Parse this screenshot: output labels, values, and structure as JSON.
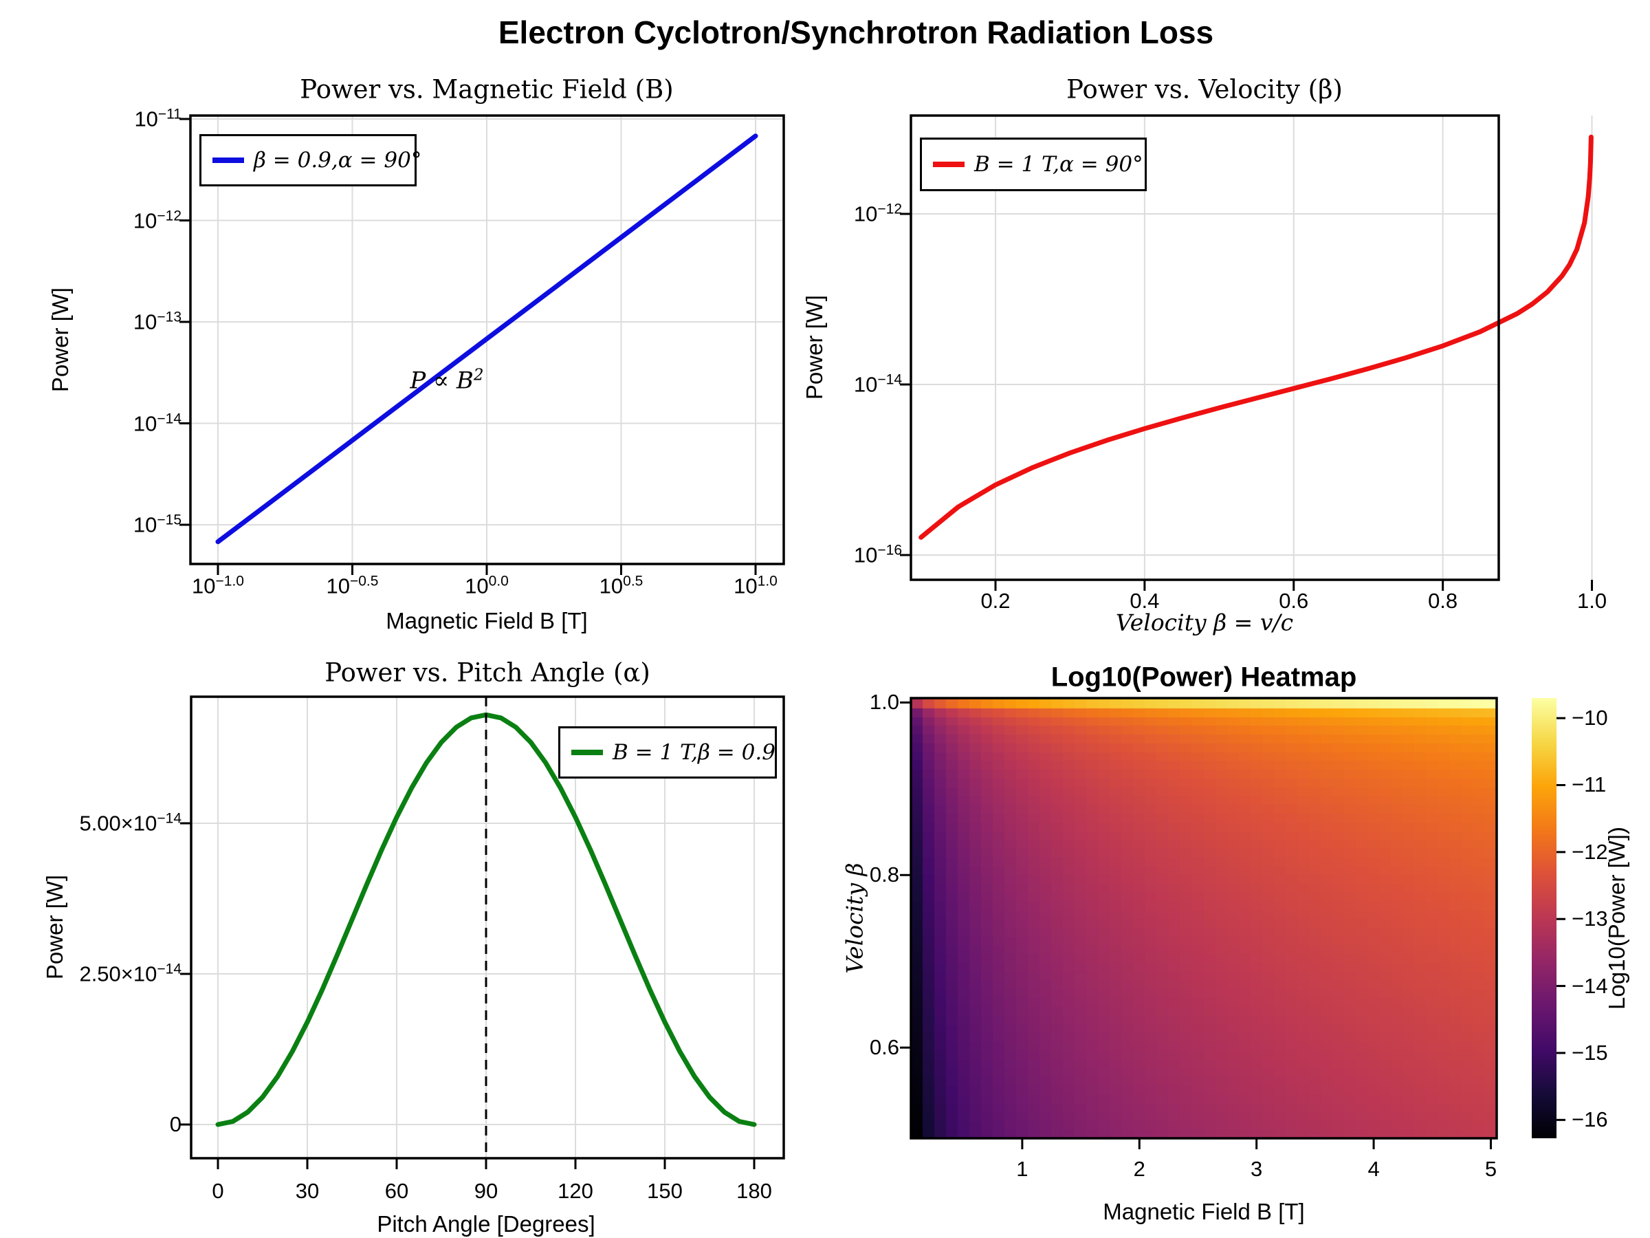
{
  "figure": {
    "title": "Electron Cyclotron/Synchrotron Radiation Loss"
  },
  "colors": {
    "series_blue": "#0d0de0",
    "series_red": "#ee1111",
    "series_green": "#0a8012",
    "grid": "#dcdcdc",
    "frame": "#000000",
    "dashed_line": "#000000",
    "background": "#ffffff"
  },
  "chart_data": [
    {
      "id": "power_vs_B",
      "type": "line",
      "title": "Power vs. Magnetic Field (B)",
      "xlabel": "Magnetic Field B [T]",
      "ylabel": "Power [W]",
      "xscale": "log10",
      "yscale": "log10",
      "xlim_log10": [
        -1.1,
        1.1
      ],
      "ylim_log10": [
        -15.4,
        -10.95
      ],
      "grid": true,
      "legend": {
        "label": "β = 0.9,α = 90°",
        "position": "top-left",
        "color": "series_blue"
      },
      "annotation": {
        "text": "P ∝ B^2",
        "B": 0.7,
        "P": 2.7e-14
      },
      "xticks": [
        {
          "v": 0.1,
          "label": "10^−1.0"
        },
        {
          "v": 0.3162,
          "label": "10^−0.5"
        },
        {
          "v": 1.0,
          "label": "10^0.0"
        },
        {
          "v": 3.1623,
          "label": "10^0.5"
        },
        {
          "v": 10.0,
          "label": "10^1.0"
        }
      ],
      "yticks": [
        {
          "v": 1e-11,
          "label": "10^−11"
        },
        {
          "v": 1e-12,
          "label": "10^−12"
        },
        {
          "v": 1e-13,
          "label": "10^−13"
        },
        {
          "v": 1e-14,
          "label": "10^−14"
        },
        {
          "v": 1e-15,
          "label": "10^−15"
        }
      ],
      "points": {
        "B": [
          0.1,
          0.17783,
          0.31623,
          0.56234,
          1.0,
          1.77828,
          3.16228,
          5.62341,
          10.0
        ],
        "P": [
          6.8e-16,
          2.1504e-15,
          6.8e-15,
          2.1504e-14,
          6.8e-14,
          2.1504e-13,
          6.8e-13,
          2.1504e-12,
          6.8e-12
        ]
      }
    },
    {
      "id": "power_vs_beta",
      "type": "line",
      "title": "Power vs. Velocity (β)",
      "xlabel": "Velocity β = v/c",
      "ylabel": "Power [W]",
      "xscale": "linear",
      "yscale": "log10",
      "xlim": [
        0.087,
        1.034
      ],
      "ylim_log10": [
        -16.29,
        -10.86
      ],
      "grid": true,
      "legend": {
        "label": "B = 1 T,α = 90°",
        "position": "top-left",
        "color": "series_red"
      },
      "xticks": [
        {
          "v": 0.2,
          "label": "0.2"
        },
        {
          "v": 0.4,
          "label": "0.4"
        },
        {
          "v": 0.6,
          "label": "0.6"
        },
        {
          "v": 0.8,
          "label": "0.8"
        },
        {
          "v": 1.0,
          "label": "1.0"
        }
      ],
      "yticks": [
        {
          "v": 1e-12,
          "label": "10^−12"
        },
        {
          "v": 1e-14,
          "label": "10^−14"
        },
        {
          "v": 1e-16,
          "label": "10^−16"
        }
      ],
      "points": {
        "beta": [
          0.1,
          0.15,
          0.2,
          0.25,
          0.3,
          0.35,
          0.4,
          0.45,
          0.5,
          0.55,
          0.6,
          0.65,
          0.7,
          0.75,
          0.8,
          0.85,
          0.9,
          0.92,
          0.94,
          0.96,
          0.97,
          0.98,
          0.99,
          0.995,
          0.997,
          0.998,
          0.999
        ],
        "P": [
          1.611e-16,
          3.671e-16,
          6.645e-16,
          1.063e-15,
          1.577e-15,
          2.227e-15,
          3.038e-15,
          4.05e-15,
          5.316e-15,
          6.917e-15,
          8.971e-15,
          1.167e-14,
          1.532e-14,
          2.051e-14,
          2.835e-14,
          4.152e-14,
          6.799e-14,
          8.788e-14,
          1.211e-13,
          1.875e-13,
          2.539e-13,
          3.868e-13,
          7.855e-13,
          1.583e-12,
          2.646e-12,
          3.976e-12,
          7.962e-12
        ]
      }
    },
    {
      "id": "power_vs_alpha",
      "type": "line",
      "title": "Power vs. Pitch Angle (α)",
      "xlabel": "Pitch Angle [Degrees]",
      "ylabel": "Power [W]",
      "xscale": "linear",
      "yscale": "linear",
      "xlim": [
        -9,
        190
      ],
      "ylim": [
        -5.6e-15,
        7.1e-14
      ],
      "grid": true,
      "legend": {
        "label": "B = 1 T,β = 0.9",
        "position": "top-right",
        "color": "series_green"
      },
      "vline": {
        "x": 90,
        "style": "dashed"
      },
      "xticks": [
        {
          "v": 0,
          "label": "0"
        },
        {
          "v": 30,
          "label": "30"
        },
        {
          "v": 60,
          "label": "60"
        },
        {
          "v": 90,
          "label": "90"
        },
        {
          "v": 120,
          "label": "120"
        },
        {
          "v": 150,
          "label": "150"
        },
        {
          "v": 180,
          "label": "180"
        }
      ],
      "yticks": [
        {
          "v": 0,
          "label": "0"
        },
        {
          "v": 2.5e-14,
          "label": "2.50×10^−14"
        },
        {
          "v": 5e-14,
          "label": "5.00×10^−14"
        }
      ],
      "points": {
        "alpha_deg": [
          0,
          5,
          10,
          15,
          20,
          25,
          30,
          35,
          40,
          45,
          50,
          55,
          60,
          65,
          70,
          75,
          80,
          85,
          90,
          95,
          100,
          105,
          110,
          115,
          120,
          125,
          130,
          135,
          140,
          145,
          150,
          155,
          160,
          165,
          170,
          175,
          180
        ],
        "P": [
          0,
          5.166e-16,
          2.05e-15,
          4.555e-15,
          7.955e-15,
          1.2145e-14,
          1.7e-14,
          2.2371e-14,
          2.8096e-14,
          3.4e-14,
          3.9904e-14,
          4.5629e-14,
          5.1e-14,
          5.5855e-14,
          6.0046e-14,
          6.3445e-14,
          6.595e-14,
          6.7483e-14,
          6.8e-14,
          6.7483e-14,
          6.595e-14,
          6.3445e-14,
          6.0046e-14,
          5.5855e-14,
          5.1e-14,
          4.5629e-14,
          3.9904e-14,
          3.4e-14,
          2.8096e-14,
          2.2371e-14,
          1.7e-14,
          1.2145e-14,
          7.955e-15,
          5.166e-16,
          2.05e-15,
          5.166e-16,
          0
        ]
      }
    },
    {
      "id": "log10_power_heatmap",
      "type": "heatmap",
      "title": "Log10(Power) Heatmap",
      "xlabel": "Magnetic Field B [T]",
      "ylabel": "Velocity β",
      "B_range": [
        0.1,
        5.0
      ],
      "beta_range": [
        0.5,
        0.999
      ],
      "grid_points": 50,
      "log10_coefficient": -13.797,
      "value_expr": "log10(P) = -13.797 + log10(B^2 · β^2 / (1 − β^2))",
      "value_min": -16.27,
      "value_max": -9.7,
      "xticks": [
        {
          "v": 1,
          "label": "1"
        },
        {
          "v": 2,
          "label": "2"
        },
        {
          "v": 3,
          "label": "3"
        },
        {
          "v": 4,
          "label": "4"
        },
        {
          "v": 5,
          "label": "5"
        }
      ],
      "yticks": [
        {
          "v": 0.6,
          "label": "0.6"
        },
        {
          "v": 0.8,
          "label": "0.8"
        },
        {
          "v": 1.0,
          "label": "1.0"
        }
      ],
      "colorbar": {
        "label": "Log10(Power [W])",
        "ticks": [
          {
            "v": -10,
            "label": "−10"
          },
          {
            "v": -11,
            "label": "−11"
          },
          {
            "v": -12,
            "label": "−12"
          },
          {
            "v": -13,
            "label": "−13"
          },
          {
            "v": -14,
            "label": "−14"
          },
          {
            "v": -15,
            "label": "−15"
          },
          {
            "v": -16,
            "label": "−16"
          }
        ]
      },
      "colormap": {
        "name": "inferno",
        "anchors": [
          "#000004",
          "#160b39",
          "#420a68",
          "#6a176e",
          "#932667",
          "#bc3754",
          "#dd513a",
          "#f37819",
          "#fca50a",
          "#f6d746",
          "#fcffa4"
        ]
      },
      "sample_grid": {
        "B": [
          0.1,
          1.0,
          2.0,
          3.5,
          5.0
        ],
        "beta": [
          0.5,
          0.7,
          0.85,
          0.95,
          0.999
        ],
        "log10_power": [
          [
            -16.27,
            -14.27,
            -13.67,
            -13.19,
            -12.88
          ],
          [
            -15.81,
            -13.81,
            -13.21,
            -12.73,
            -12.42
          ],
          [
            -15.38,
            -13.38,
            -12.78,
            -12.29,
            -11.98
          ],
          [
            -14.83,
            -12.83,
            -12.23,
            -11.74,
            -11.43
          ],
          [
            -13.1,
            -11.1,
            -10.5,
            -10.01,
            -9.7
          ]
        ]
      }
    }
  ]
}
